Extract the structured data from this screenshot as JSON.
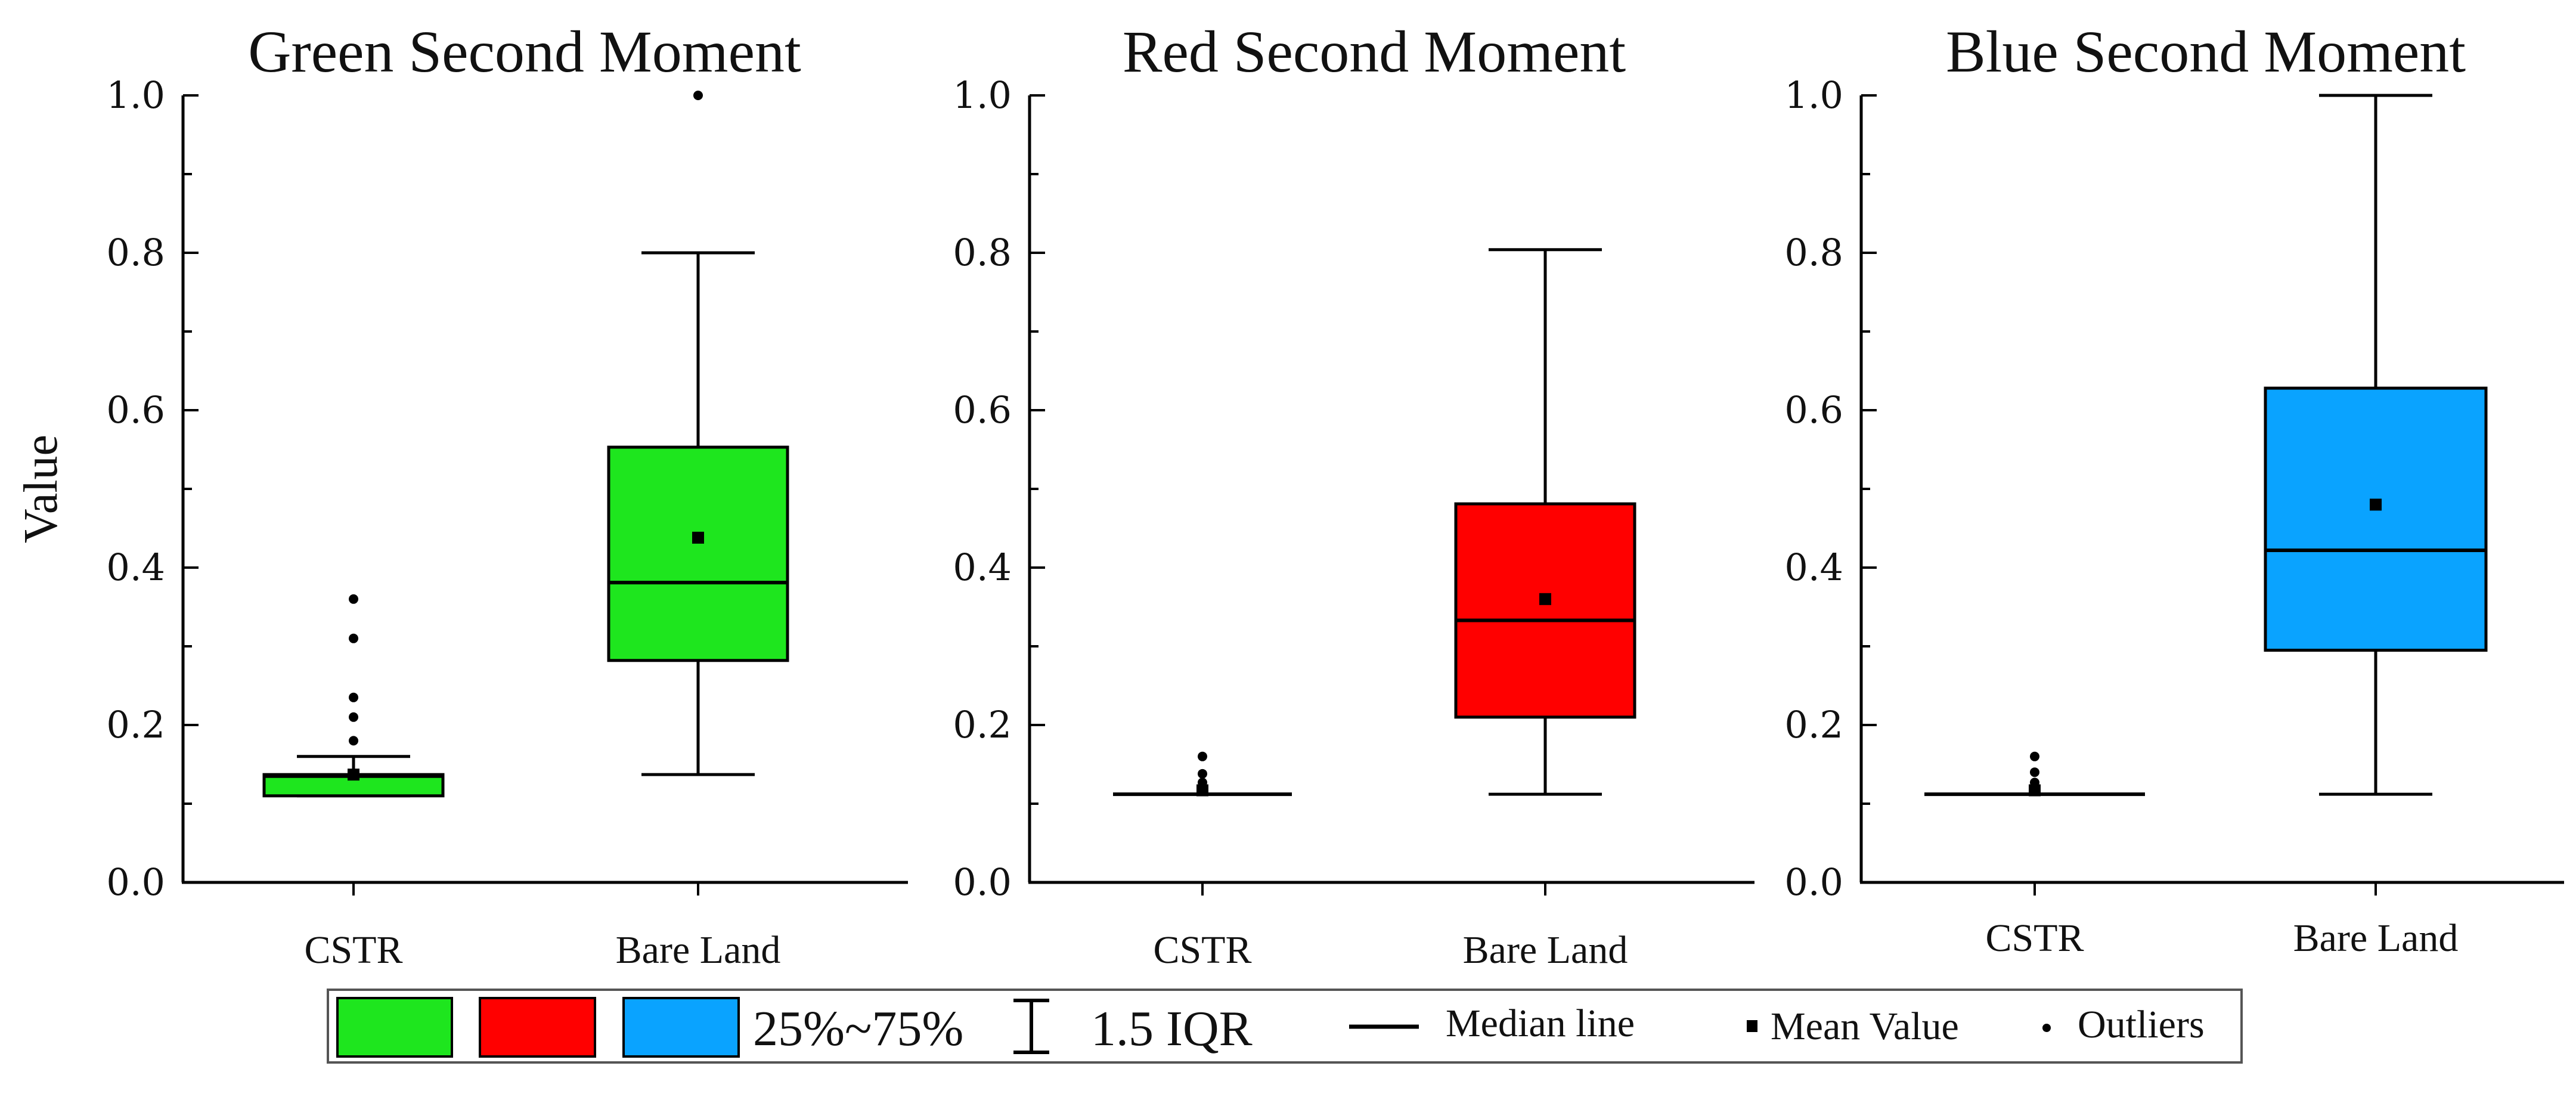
{
  "chart_data": [
    {
      "type": "box",
      "title": "Green Second Moment",
      "ylabel": "Value",
      "ylim": [
        0,
        1.0
      ],
      "yticks": [
        "0.0",
        "0.2",
        "0.4",
        "0.6",
        "0.8",
        "1.0"
      ],
      "fill_color": "#1EE61E",
      "categories": [
        "CSTR",
        "Bare Land"
      ],
      "boxes": [
        {
          "name": "CSTR",
          "whisker_low": 0.11,
          "q1": 0.11,
          "median": 0.135,
          "q3": 0.137,
          "whisker_high": 0.16,
          "mean": 0.137,
          "outliers": [
            0.18,
            0.21,
            0.235,
            0.31,
            0.36
          ]
        },
        {
          "name": "Bare Land",
          "whisker_low": 0.137,
          "q1": 0.282,
          "median": 0.381,
          "q3": 0.553,
          "whisker_high": 0.8,
          "mean": 0.438,
          "outliers": [
            1.0
          ]
        }
      ]
    },
    {
      "type": "box",
      "title": "Red Second Moment",
      "ylabel": "",
      "ylim": [
        0,
        1.0
      ],
      "yticks": [
        "0.0",
        "0.2",
        "0.4",
        "0.6",
        "0.8",
        "1.0"
      ],
      "fill_color": "#FF0000",
      "categories": [
        "CSTR",
        "Bare Land"
      ],
      "boxes": [
        {
          "name": "CSTR",
          "whisker_low": 0.112,
          "q1": 0.112,
          "median": 0.112,
          "q3": 0.112,
          "whisker_high": 0.112,
          "mean": 0.117,
          "outliers": [
            0.127,
            0.138,
            0.16
          ]
        },
        {
          "name": "Bare Land",
          "whisker_low": 0.112,
          "q1": 0.21,
          "median": 0.333,
          "q3": 0.481,
          "whisker_high": 0.804,
          "mean": 0.36,
          "outliers": []
        }
      ]
    },
    {
      "type": "box",
      "title": "Blue Second Moment",
      "ylabel": "",
      "ylim": [
        0,
        1.0
      ],
      "yticks": [
        "0.0",
        "0.2",
        "0.4",
        "0.6",
        "0.8",
        "1.0"
      ],
      "fill_color": "#0AA3FF",
      "categories": [
        "CSTR",
        "Bare Land"
      ],
      "boxes": [
        {
          "name": "CSTR",
          "whisker_low": 0.112,
          "q1": 0.112,
          "median": 0.112,
          "q3": 0.112,
          "whisker_high": 0.112,
          "mean": 0.117,
          "outliers": [
            0.127,
            0.14,
            0.16
          ]
        },
        {
          "name": "Bare Land",
          "whisker_low": 0.112,
          "q1": 0.295,
          "median": 0.422,
          "q3": 0.628,
          "whisker_high": 1.0,
          "mean": 0.48,
          "outliers": []
        }
      ]
    }
  ],
  "legend": {
    "swatch_colors": [
      "#1EE61E",
      "#FF0000",
      "#0AA3FF"
    ],
    "box_label": "25%~75%",
    "whisker_label": "1.5 IQR",
    "median_label": "Median line",
    "mean_label": "Mean Value",
    "outlier_label": "Outliers"
  }
}
